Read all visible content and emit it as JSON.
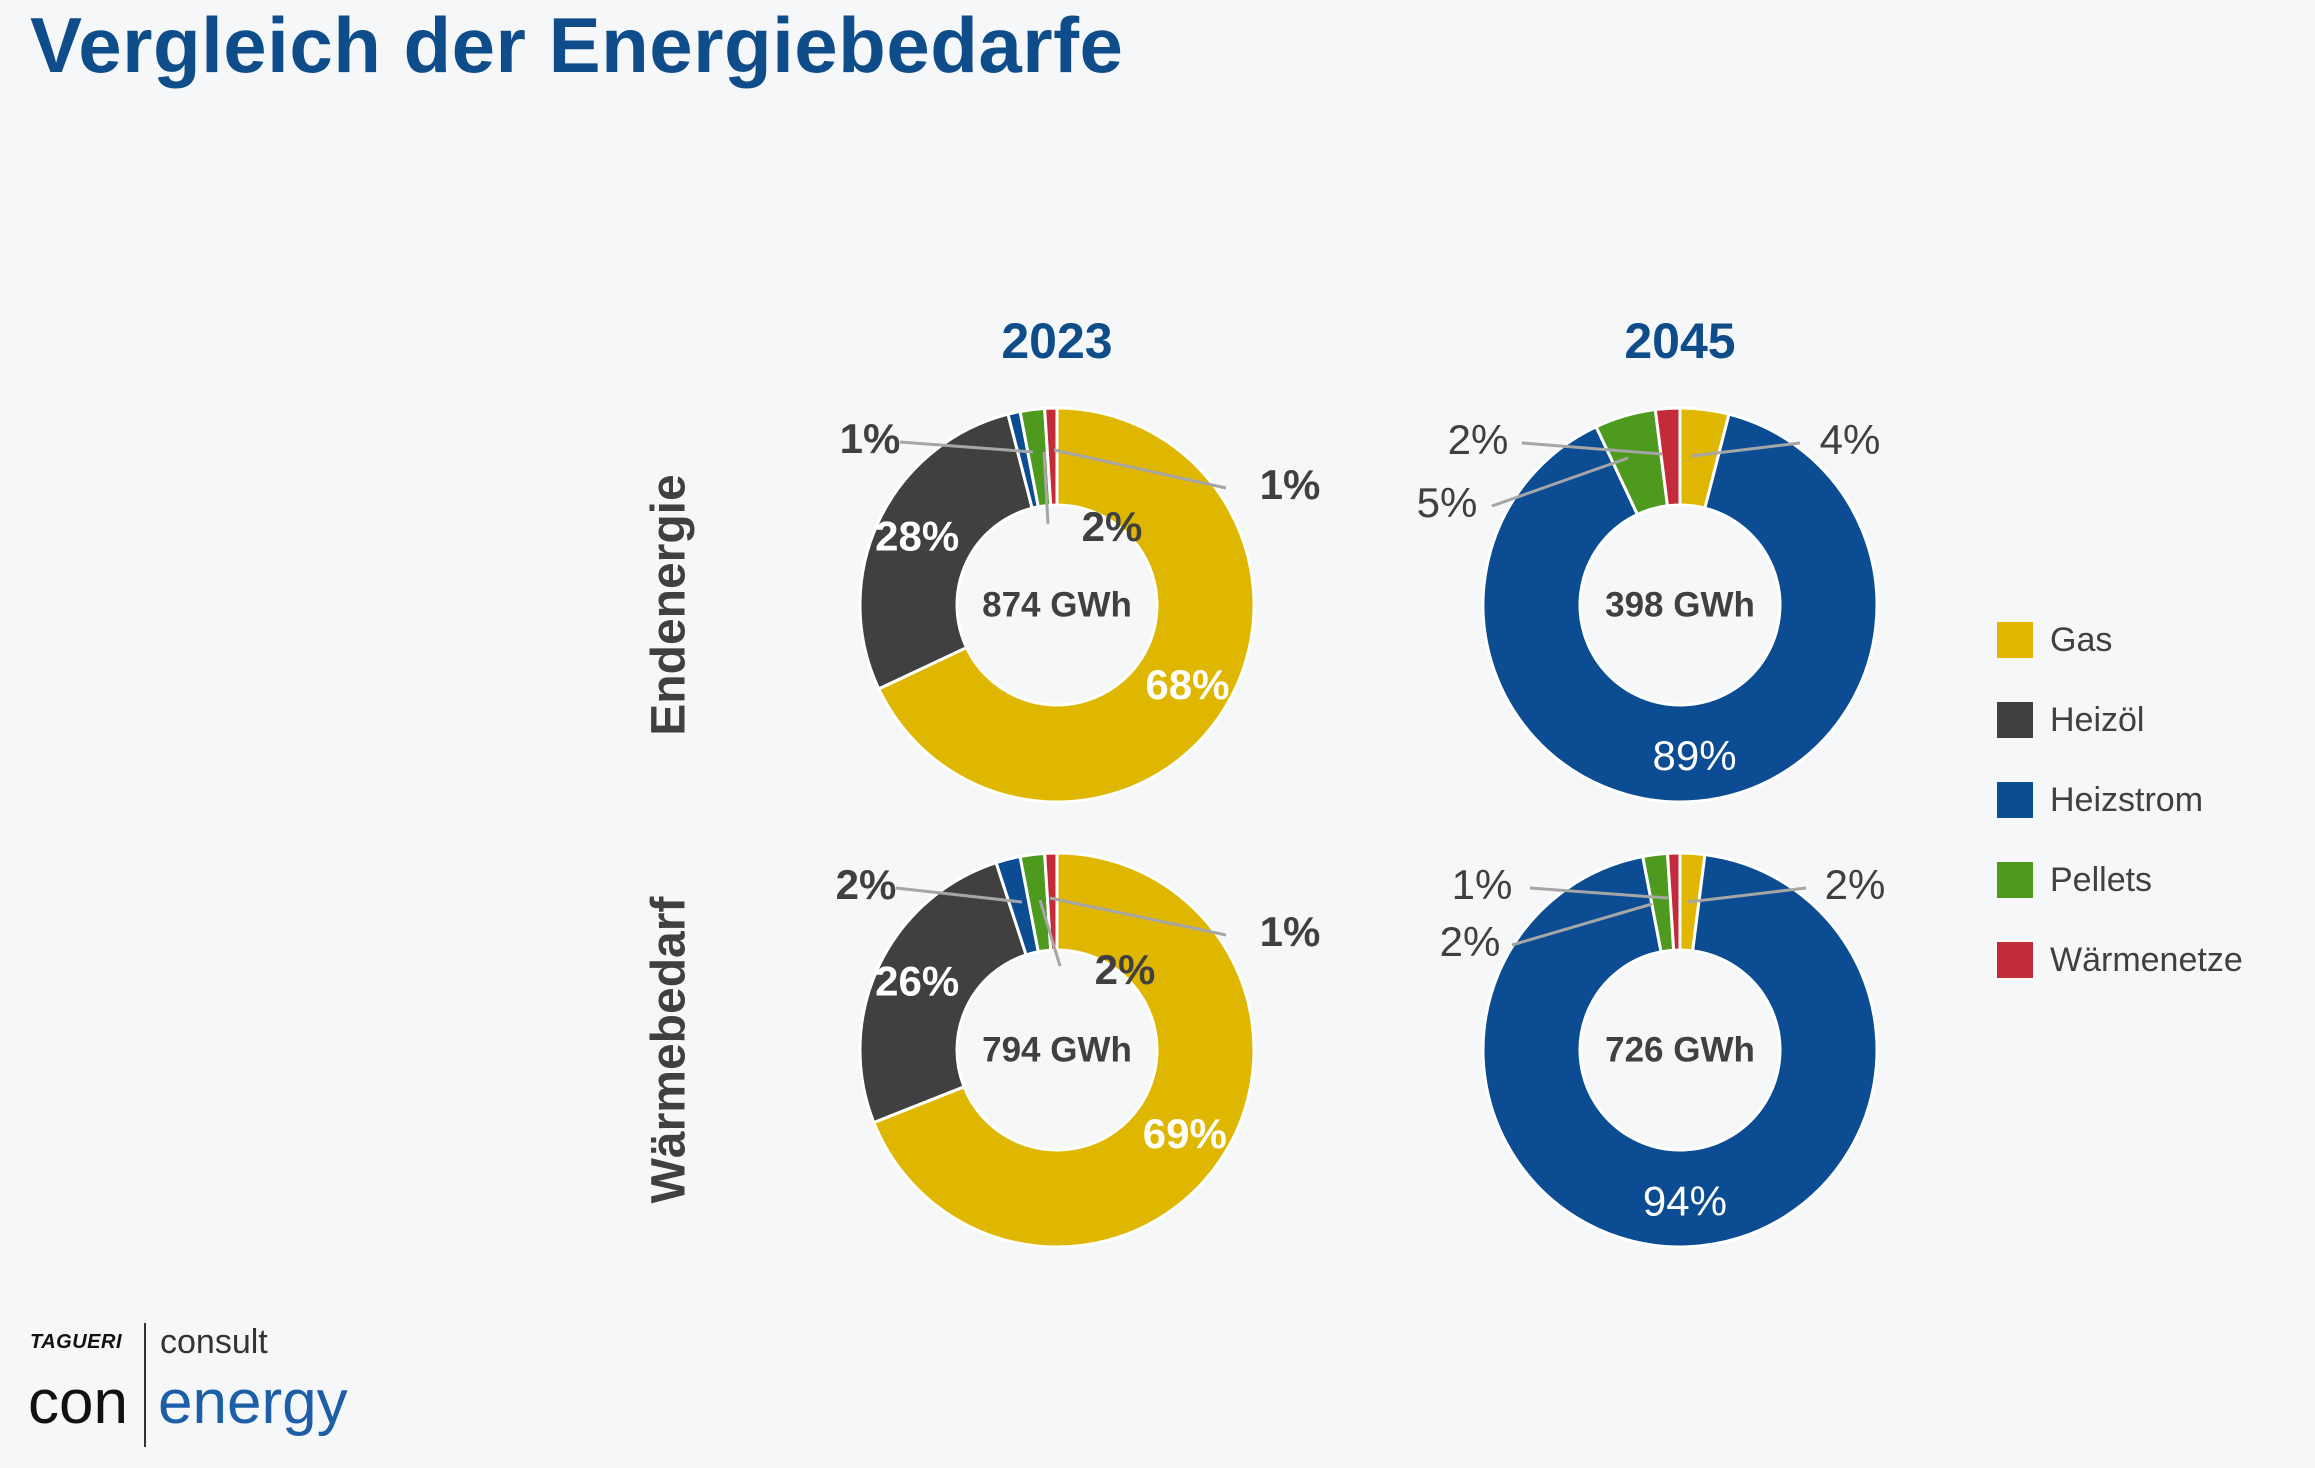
{
  "page": {
    "title": "Vergleich der Energiebedarfe"
  },
  "logo": {
    "brand": "TAGUERI",
    "brand_sub": "",
    "consult": "consult",
    "con": "con",
    "energy": "energy"
  },
  "colors": {
    "Gas": "#e0b700",
    "Heizöl": "#404040",
    "Heizstrom": "#0b4c93",
    "Pellets": "#4e9a1f",
    "Wärmenetze": "#c42b3a",
    "title": "#0f4c8a"
  },
  "chart_data": {
    "type": "pie",
    "variant": "donut",
    "columns": [
      "2023",
      "2045"
    ],
    "rows": [
      "Endenergie",
      "Wärmebedarf"
    ],
    "legend": {
      "position": "right",
      "entries": [
        "Gas",
        "Heizöl",
        "Heizstrom",
        "Pellets",
        "Wärmenetze"
      ]
    },
    "charts": [
      {
        "row": "Endenergie",
        "year": "2023",
        "total_label": "874 GWh",
        "slices": [
          {
            "name": "Gas",
            "value": 68,
            "label": "68%"
          },
          {
            "name": "Heizöl",
            "value": 28,
            "label": "28%"
          },
          {
            "name": "Heizstrom",
            "value": 1,
            "label": "1%"
          },
          {
            "name": "Pellets",
            "value": 2,
            "label": "2%"
          },
          {
            "name": "Wärmenetze",
            "value": 1,
            "label": "1%"
          }
        ]
      },
      {
        "row": "Endenergie",
        "year": "2045",
        "total_label": "398 GWh",
        "slices": [
          {
            "name": "Gas",
            "value": 4,
            "label": "4%"
          },
          {
            "name": "Heizöl",
            "value": 0,
            "label": ""
          },
          {
            "name": "Heizstrom",
            "value": 89,
            "label": "89%"
          },
          {
            "name": "Pellets",
            "value": 5,
            "label": "5%"
          },
          {
            "name": "Wärmenetze",
            "value": 2,
            "label": "2%"
          }
        ]
      },
      {
        "row": "Wärmebedarf",
        "year": "2023",
        "total_label": "794 GWh",
        "slices": [
          {
            "name": "Gas",
            "value": 69,
            "label": "69%"
          },
          {
            "name": "Heizöl",
            "value": 26,
            "label": "26%"
          },
          {
            "name": "Heizstrom",
            "value": 2,
            "label": "2%"
          },
          {
            "name": "Pellets",
            "value": 2,
            "label": "2%"
          },
          {
            "name": "Wärmenetze",
            "value": 1,
            "label": "1%"
          }
        ]
      },
      {
        "row": "Wärmebedarf",
        "year": "2045",
        "total_label": "726 GWh",
        "slices": [
          {
            "name": "Gas",
            "value": 2,
            "label": "2%"
          },
          {
            "name": "Heizöl",
            "value": 0,
            "label": ""
          },
          {
            "name": "Heizstrom",
            "value": 94,
            "label": "94%"
          },
          {
            "name": "Pellets",
            "value": 2,
            "label": "2%"
          },
          {
            "name": "Wärmenetze",
            "value": 1,
            "label": "1%"
          }
        ]
      }
    ]
  }
}
